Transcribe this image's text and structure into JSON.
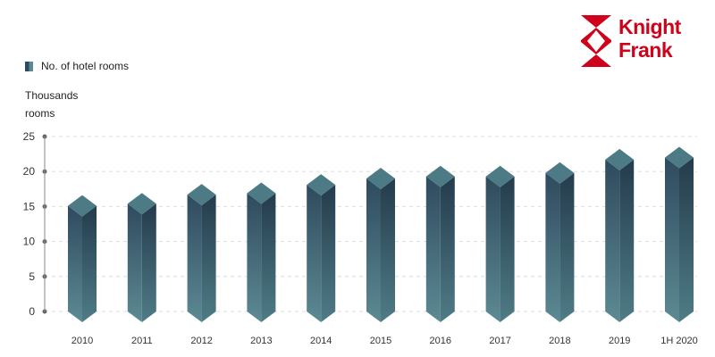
{
  "legend": {
    "label": "No. of hotel rooms"
  },
  "brand": {
    "line1": "Knight",
    "line2": "Frank",
    "color": "#d0021b"
  },
  "colors": {
    "dark": "#2f4a5e",
    "light": "#5c8a93",
    "top": "#4c7a85",
    "axis": "#888888"
  },
  "chart_data": {
    "type": "bar",
    "ylabel": "Thousands rooms",
    "ylabel_lines": [
      "Thousands",
      "rooms"
    ],
    "categories": [
      "2010",
      "2011",
      "2012",
      "2013",
      "2014",
      "2015",
      "2016",
      "2017",
      "2018",
      "2019",
      "1H 2020"
    ],
    "series": [
      {
        "name": "No. of hotel rooms",
        "values": [
          15.1,
          15.4,
          16.7,
          16.9,
          18.1,
          19.0,
          19.3,
          19.3,
          19.8,
          21.7,
          22.0
        ]
      }
    ],
    "yticks": [
      0,
      5,
      10,
      15,
      20,
      25
    ],
    "ylim": [
      0,
      25
    ],
    "grid": true,
    "legend_position": "top-left"
  }
}
